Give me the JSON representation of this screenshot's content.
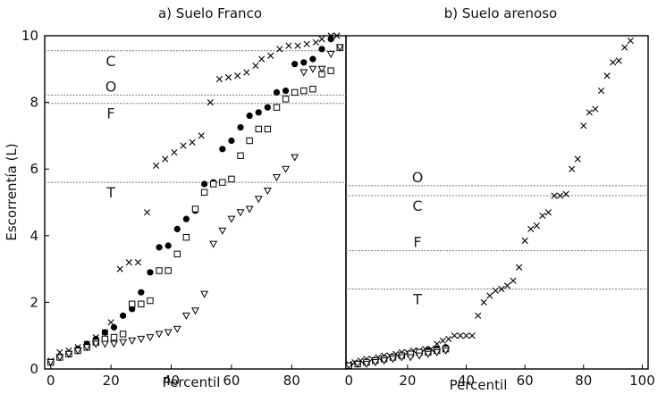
{
  "chart_data": [
    {
      "type": "scatter",
      "title": "a) Suelo Franco",
      "xlabel": "Percentil",
      "ylabel": "Escorrentía (L)",
      "xlim": [
        -2,
        98
      ],
      "ylim": [
        0,
        10
      ],
      "xticks": [
        "0",
        "20",
        "40",
        "60",
        "80"
      ],
      "yticks": [
        "0",
        "2",
        "4",
        "6",
        "8",
        "10"
      ],
      "grid": false,
      "reference_lines": [
        {
          "label": "C",
          "y": 9.55
        },
        {
          "label": "O",
          "y": 8.22
        },
        {
          "label": "F",
          "y": 7.97
        },
        {
          "label": "T",
          "y": 5.6
        }
      ],
      "series": [
        {
          "marker": "x",
          "points": [
            [
              0,
              0.25
            ],
            [
              3,
              0.5
            ],
            [
              6,
              0.55
            ],
            [
              9,
              0.65
            ],
            [
              12,
              0.75
            ],
            [
              15,
              0.95
            ],
            [
              18,
              1.1
            ],
            [
              20,
              1.4
            ],
            [
              23,
              3.0
            ],
            [
              26,
              3.2
            ],
            [
              29,
              3.2
            ],
            [
              32,
              4.7
            ],
            [
              35,
              6.1
            ],
            [
              38,
              6.3
            ],
            [
              41,
              6.5
            ],
            [
              44,
              6.7
            ],
            [
              47,
              6.8
            ],
            [
              50,
              7.0
            ],
            [
              53,
              8.0
            ],
            [
              56,
              8.7
            ],
            [
              59,
              8.75
            ],
            [
              62,
              8.8
            ],
            [
              65,
              8.9
            ],
            [
              68,
              9.1
            ],
            [
              70,
              9.3
            ],
            [
              73,
              9.4
            ],
            [
              76,
              9.6
            ],
            [
              79,
              9.7
            ],
            [
              82,
              9.7
            ],
            [
              85,
              9.75
            ],
            [
              88,
              9.8
            ],
            [
              90,
              9.9
            ],
            [
              93,
              10.0
            ],
            [
              95,
              10.0
            ]
          ]
        },
        {
          "marker": "circle",
          "points": [
            [
              0,
              0.2
            ],
            [
              3,
              0.35
            ],
            [
              6,
              0.45
            ],
            [
              9,
              0.6
            ],
            [
              12,
              0.75
            ],
            [
              15,
              0.9
            ],
            [
              18,
              1.1
            ],
            [
              21,
              1.25
            ],
            [
              24,
              1.6
            ],
            [
              27,
              1.8
            ],
            [
              30,
              2.3
            ],
            [
              33,
              2.9
            ],
            [
              36,
              3.65
            ],
            [
              39,
              3.7
            ],
            [
              42,
              4.2
            ],
            [
              45,
              4.5
            ],
            [
              48,
              4.75
            ],
            [
              51,
              5.55
            ],
            [
              54,
              5.6
            ],
            [
              57,
              6.6
            ],
            [
              60,
              6.85
            ],
            [
              63,
              7.25
            ],
            [
              66,
              7.6
            ],
            [
              69,
              7.7
            ],
            [
              72,
              7.85
            ],
            [
              75,
              8.3
            ],
            [
              78,
              8.35
            ],
            [
              81,
              9.15
            ],
            [
              84,
              9.2
            ],
            [
              87,
              9.3
            ],
            [
              90,
              9.6
            ],
            [
              93,
              9.9
            ]
          ]
        },
        {
          "marker": "square",
          "points": [
            [
              0,
              0.2
            ],
            [
              3,
              0.35
            ],
            [
              6,
              0.45
            ],
            [
              9,
              0.55
            ],
            [
              12,
              0.65
            ],
            [
              15,
              0.8
            ],
            [
              18,
              0.9
            ],
            [
              21,
              0.95
            ],
            [
              24,
              1.05
            ],
            [
              27,
              1.95
            ],
            [
              30,
              1.95
            ],
            [
              33,
              2.05
            ],
            [
              36,
              2.95
            ],
            [
              39,
              2.95
            ],
            [
              42,
              3.45
            ],
            [
              45,
              3.95
            ],
            [
              48,
              4.8
            ],
            [
              51,
              5.3
            ],
            [
              54,
              5.55
            ],
            [
              57,
              5.6
            ],
            [
              60,
              5.7
            ],
            [
              63,
              6.4
            ],
            [
              66,
              6.85
            ],
            [
              69,
              7.2
            ],
            [
              72,
              7.2
            ],
            [
              75,
              7.85
            ],
            [
              78,
              8.1
            ],
            [
              81,
              8.3
            ],
            [
              84,
              8.35
            ],
            [
              87,
              8.4
            ],
            [
              90,
              8.85
            ],
            [
              93,
              8.95
            ],
            [
              96,
              9.65
            ]
          ]
        },
        {
          "marker": "triangle-down",
          "points": [
            [
              0,
              0.2
            ],
            [
              3,
              0.35
            ],
            [
              6,
              0.45
            ],
            [
              9,
              0.55
            ],
            [
              12,
              0.65
            ],
            [
              15,
              0.75
            ],
            [
              18,
              0.75
            ],
            [
              21,
              0.75
            ],
            [
              24,
              0.8
            ],
            [
              27,
              0.85
            ],
            [
              30,
              0.9
            ],
            [
              33,
              0.95
            ],
            [
              36,
              1.05
            ],
            [
              39,
              1.1
            ],
            [
              42,
              1.2
            ],
            [
              45,
              1.6
            ],
            [
              48,
              1.75
            ],
            [
              51,
              2.25
            ],
            [
              54,
              3.75
            ],
            [
              57,
              4.15
            ],
            [
              60,
              4.5
            ],
            [
              63,
              4.7
            ],
            [
              66,
              4.8
            ],
            [
              69,
              5.1
            ],
            [
              72,
              5.35
            ],
            [
              75,
              5.75
            ],
            [
              78,
              6.0
            ],
            [
              81,
              6.35
            ],
            [
              84,
              8.9
            ],
            [
              87,
              9.0
            ],
            [
              90,
              9.0
            ],
            [
              93,
              9.45
            ],
            [
              96,
              9.65
            ]
          ]
        }
      ]
    },
    {
      "type": "scatter",
      "title": "b) Suelo arenoso",
      "xlabel": "Percentil",
      "ylabel": "",
      "xlim": [
        -1,
        102
      ],
      "ylim": [
        0,
        10
      ],
      "xticks": [
        "0",
        "20",
        "40",
        "60",
        "80",
        "100"
      ],
      "grid": false,
      "reference_lines": [
        {
          "label": "O",
          "y": 5.5
        },
        {
          "label": "C",
          "y": 5.2
        },
        {
          "label": "F",
          "y": 3.55
        },
        {
          "label": "T",
          "y": 2.4
        }
      ],
      "series": [
        {
          "marker": "x",
          "points": [
            [
              0,
              0.15
            ],
            [
              2,
              0.2
            ],
            [
              4,
              0.25
            ],
            [
              6,
              0.3
            ],
            [
              8,
              0.3
            ],
            [
              10,
              0.35
            ],
            [
              12,
              0.4
            ],
            [
              14,
              0.4
            ],
            [
              16,
              0.45
            ],
            [
              18,
              0.5
            ],
            [
              20,
              0.5
            ],
            [
              22,
              0.55
            ],
            [
              24,
              0.55
            ],
            [
              26,
              0.6
            ],
            [
              28,
              0.6
            ],
            [
              30,
              0.75
            ],
            [
              32,
              0.85
            ],
            [
              34,
              0.9
            ],
            [
              36,
              1.0
            ],
            [
              38,
              1.0
            ],
            [
              40,
              1.0
            ],
            [
              42,
              1.0
            ],
            [
              44,
              1.6
            ],
            [
              46,
              2.0
            ],
            [
              48,
              2.2
            ],
            [
              50,
              2.35
            ],
            [
              52,
              2.4
            ],
            [
              54,
              2.5
            ],
            [
              56,
              2.65
            ],
            [
              58,
              3.05
            ],
            [
              60,
              3.85
            ],
            [
              62,
              4.2
            ],
            [
              64,
              4.3
            ],
            [
              66,
              4.6
            ],
            [
              68,
              4.7
            ],
            [
              70,
              5.2
            ],
            [
              72,
              5.2
            ],
            [
              74,
              5.25
            ],
            [
              76,
              6.0
            ],
            [
              78,
              6.3
            ],
            [
              80,
              7.3
            ],
            [
              82,
              7.7
            ],
            [
              84,
              7.8
            ],
            [
              86,
              8.35
            ],
            [
              88,
              8.8
            ],
            [
              90,
              9.2
            ],
            [
              92,
              9.25
            ],
            [
              94,
              9.65
            ],
            [
              96,
              9.85
            ]
          ]
        },
        {
          "marker": "circle",
          "points": [
            [
              0,
              0.1
            ],
            [
              3,
              0.15
            ],
            [
              6,
              0.2
            ],
            [
              9,
              0.25
            ],
            [
              12,
              0.3
            ],
            [
              15,
              0.35
            ],
            [
              18,
              0.4
            ],
            [
              21,
              0.45
            ],
            [
              24,
              0.5
            ],
            [
              27,
              0.55
            ],
            [
              30,
              0.6
            ],
            [
              33,
              0.65
            ]
          ]
        },
        {
          "marker": "square",
          "points": [
            [
              0,
              0.1
            ],
            [
              3,
              0.15
            ],
            [
              6,
              0.2
            ],
            [
              9,
              0.25
            ],
            [
              12,
              0.3
            ],
            [
              15,
              0.35
            ],
            [
              18,
              0.4
            ],
            [
              21,
              0.45
            ],
            [
              24,
              0.5
            ],
            [
              27,
              0.5
            ],
            [
              30,
              0.55
            ],
            [
              33,
              0.6
            ]
          ]
        },
        {
          "marker": "triangle-down",
          "points": [
            [
              0,
              0.1
            ],
            [
              3,
              0.15
            ],
            [
              6,
              0.15
            ],
            [
              9,
              0.2
            ],
            [
              12,
              0.25
            ],
            [
              15,
              0.3
            ],
            [
              18,
              0.35
            ],
            [
              21,
              0.35
            ],
            [
              24,
              0.4
            ],
            [
              27,
              0.45
            ],
            [
              30,
              0.5
            ],
            [
              33,
              0.55
            ]
          ]
        }
      ]
    }
  ]
}
